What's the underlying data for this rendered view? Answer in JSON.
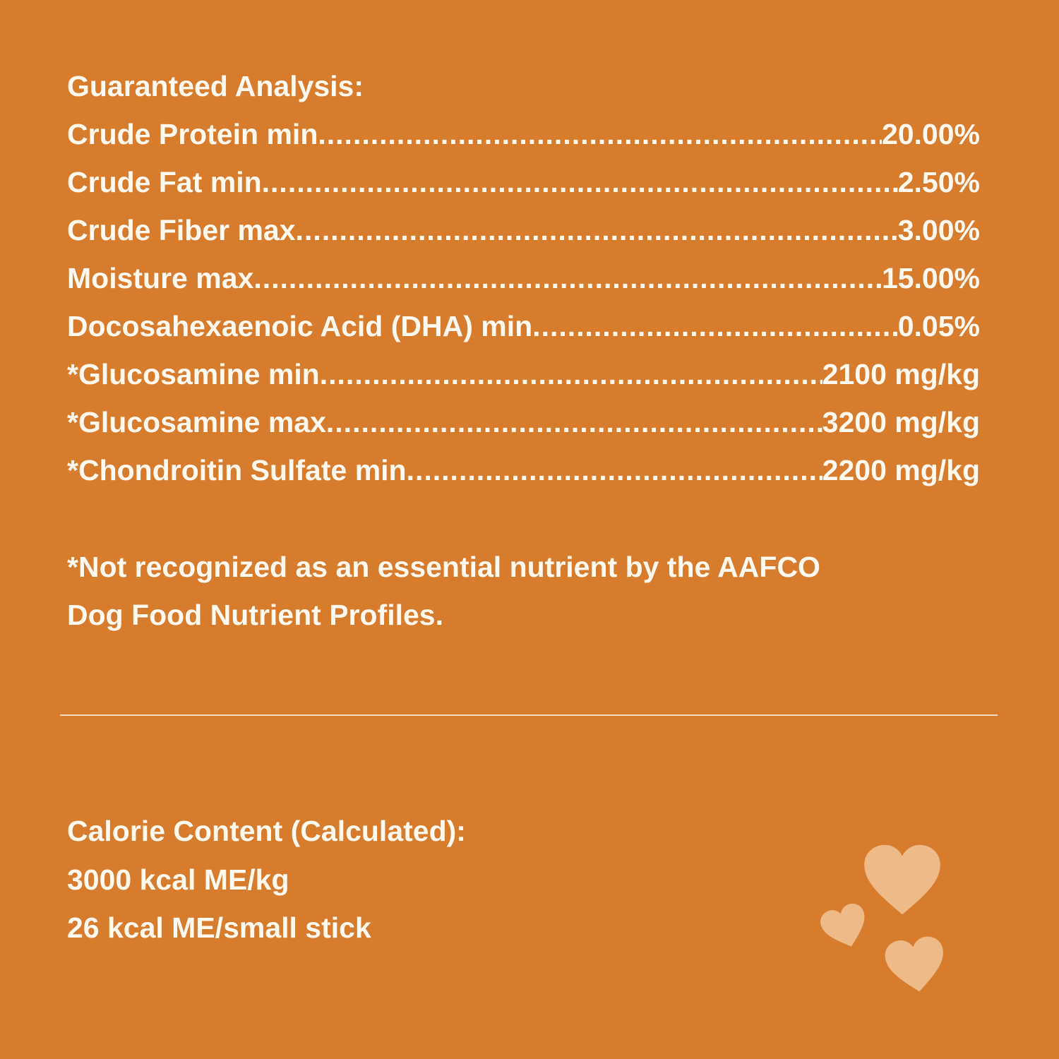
{
  "analysis": {
    "title": "Guaranteed Analysis:",
    "rows": [
      {
        "label": "Crude Protein min",
        "value": "20.00%"
      },
      {
        "label": "Crude Fat min",
        "value": "2.50%"
      },
      {
        "label": "Crude Fiber max",
        "value": "3.00%"
      },
      {
        "label": "Moisture max",
        "value": "15.00%"
      },
      {
        "label": "Docosahexaenoic Acid (DHA) min",
        "value": "0.05%"
      },
      {
        "label": "*Glucosamine min",
        "value": "2100 mg/kg"
      },
      {
        "label": "*Glucosamine max",
        "value": "3200 mg/kg"
      },
      {
        "label": "*Chondroitin Sulfate min",
        "value": "2200 mg/kg"
      }
    ],
    "footnote_line1": "*Not recognized as an essential nutrient by the AAFCO",
    "footnote_line2": "Dog Food Nutrient Profiles."
  },
  "calorie": {
    "title": "Calorie Content (Calculated):",
    "line1": "3000 kcal ME/kg",
    "line2": "26 kcal ME/small stick"
  },
  "colors": {
    "background": "#D77B2D",
    "text": "#FFF9F0",
    "hearts": "#EDBA88"
  },
  "decorations": [
    "heart-icon",
    "heart-icon",
    "heart-icon"
  ]
}
